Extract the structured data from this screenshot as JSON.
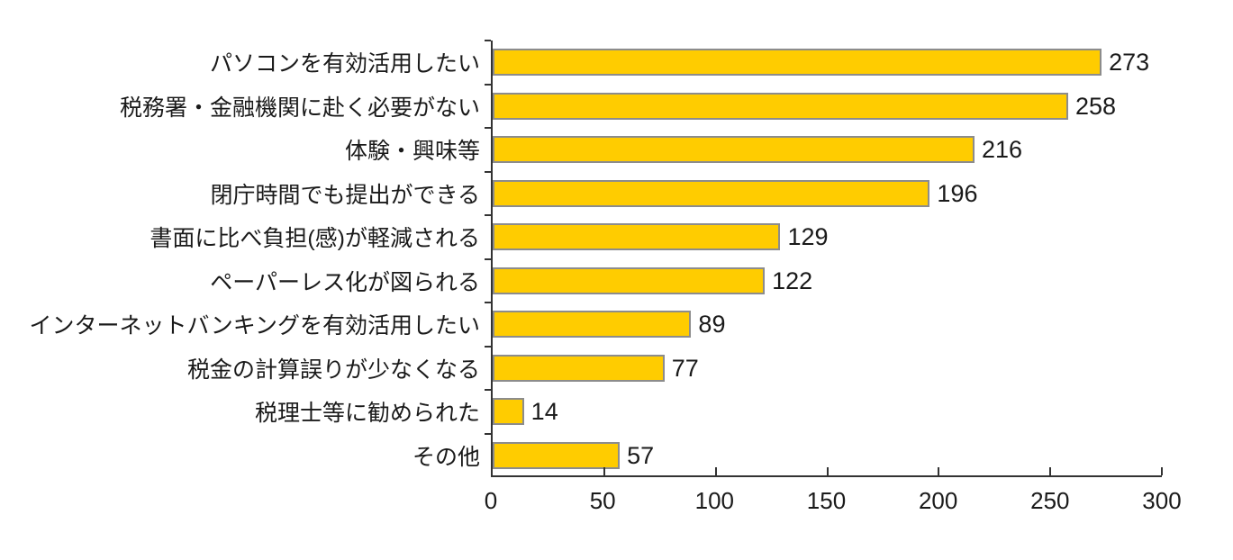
{
  "chart_data": {
    "type": "bar",
    "orientation": "horizontal",
    "title": "",
    "xlabel": "",
    "ylabel": "",
    "categories": [
      "パソコンを有効活用したい",
      "税務署・金融機関に赴く必要がない",
      "体験・興味等",
      "閉庁時間でも提出ができる",
      "書面に比べ負担(感)が軽減される",
      "ペーパーレス化が図られる",
      "インターネットバンキングを有効活用したい",
      "税金の計算誤りが少なくなる",
      "税理士等に勧められた",
      "その他"
    ],
    "values": [
      273,
      258,
      216,
      196,
      129,
      122,
      89,
      77,
      14,
      57
    ],
    "xlim": [
      0,
      300
    ],
    "xticks": [
      0,
      50,
      100,
      150,
      200,
      250,
      300
    ],
    "grid": false,
    "legend": false,
    "data_labels": true,
    "bar_color": "#FFCC00",
    "bar_border_color": "#8C8C8C",
    "axis_color": "#333333",
    "text_color": "#1a1a1a",
    "background_color": "#FFFFFF"
  }
}
